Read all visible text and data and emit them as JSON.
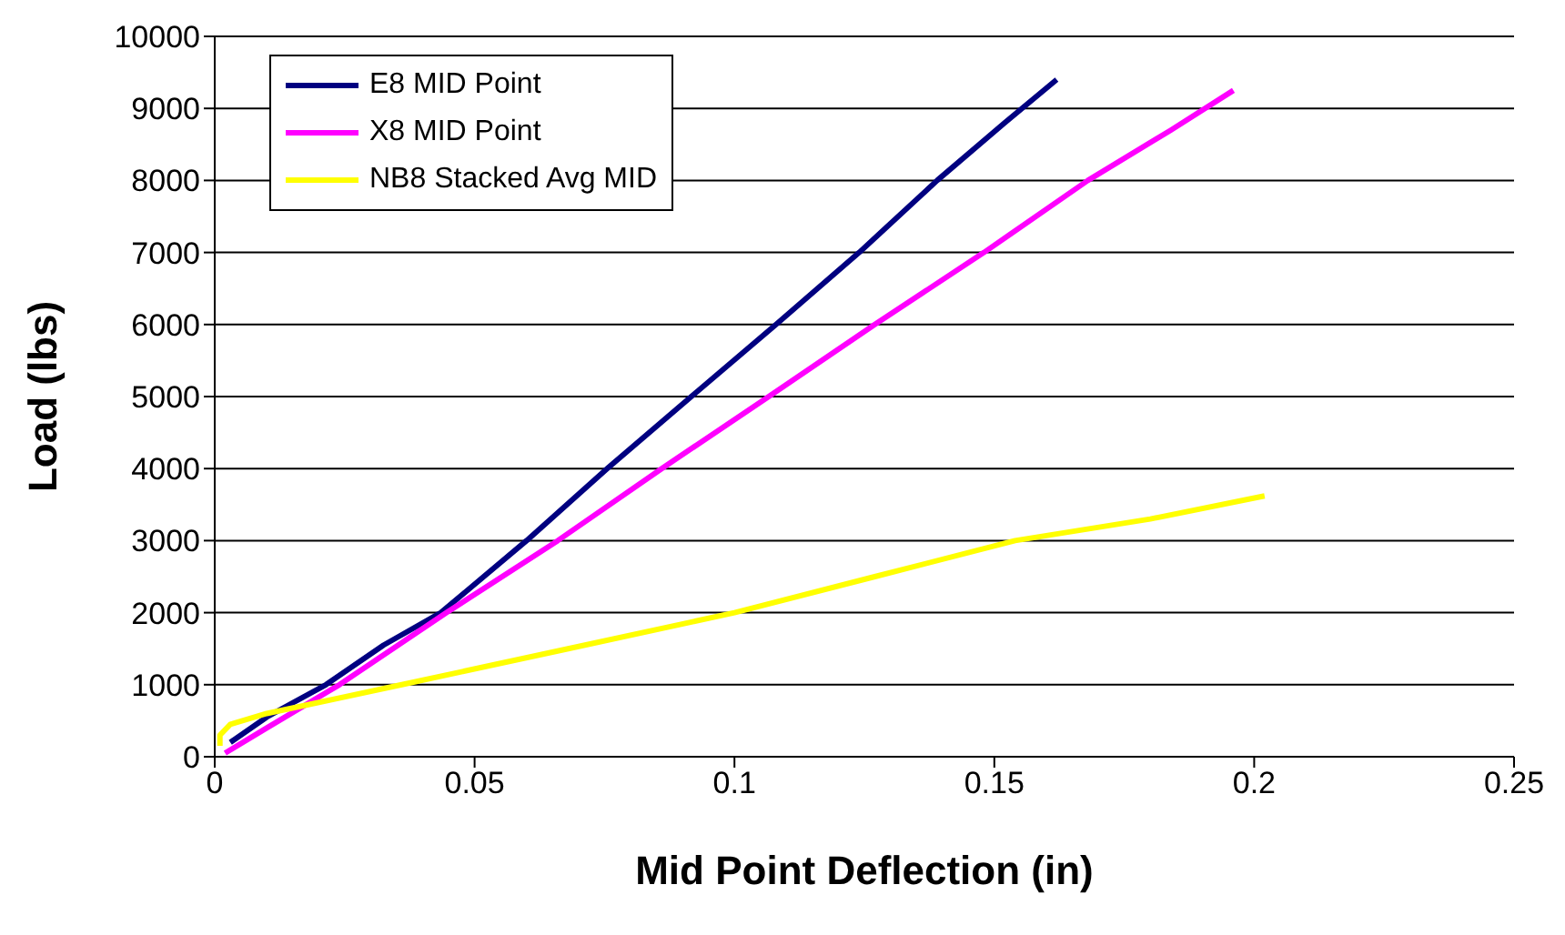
{
  "chart_data": {
    "type": "line",
    "xlabel": "Mid Point Deflection (in)",
    "ylabel": "Load (lbs)",
    "series": [
      {
        "name": "E8 MID Point",
        "color": "#000080",
        "x": [
          0.003,
          0.01,
          0.0214,
          0.0325,
          0.0435,
          0.06,
          0.0755,
          0.0917,
          0.108,
          0.124,
          0.139,
          0.152,
          0.162
        ],
        "values": [
          200,
          550,
          1000,
          1550,
          2000,
          3000,
          4000,
          5000,
          6000,
          7000,
          8000,
          8800,
          9400
        ]
      },
      {
        "name": "X8 MID Point",
        "color": "#ff00ff",
        "x": [
          0.002,
          0.01,
          0.024,
          0.0446,
          0.066,
          0.086,
          0.1066,
          0.127,
          0.148,
          0.168,
          0.184,
          0.196
        ],
        "values": [
          50,
          400,
          1000,
          2000,
          3000,
          4000,
          5000,
          6000,
          7000,
          8000,
          8700,
          9250
        ]
      },
      {
        "name": "NB8 Stacked Avg MID",
        "color": "#ffff00",
        "x": [
          0.001,
          0.001,
          0.003,
          0.01,
          0.036,
          0.068,
          0.1,
          0.127,
          0.154,
          0.18,
          0.202
        ],
        "values": [
          150,
          300,
          450,
          600,
          1000,
          1500,
          2000,
          2500,
          3000,
          3300,
          3620
        ]
      }
    ],
    "xlim": [
      0,
      0.25
    ],
    "xticks": [
      0,
      0.05,
      0.1,
      0.15,
      0.2,
      0.25
    ],
    "ylim": [
      0,
      10000
    ],
    "yticks": [
      0,
      1000,
      2000,
      3000,
      4000,
      5000,
      6000,
      7000,
      8000,
      9000,
      10000
    ],
    "grid": "y",
    "legend": "top left",
    "marker": "none",
    "line_style": "solid"
  }
}
